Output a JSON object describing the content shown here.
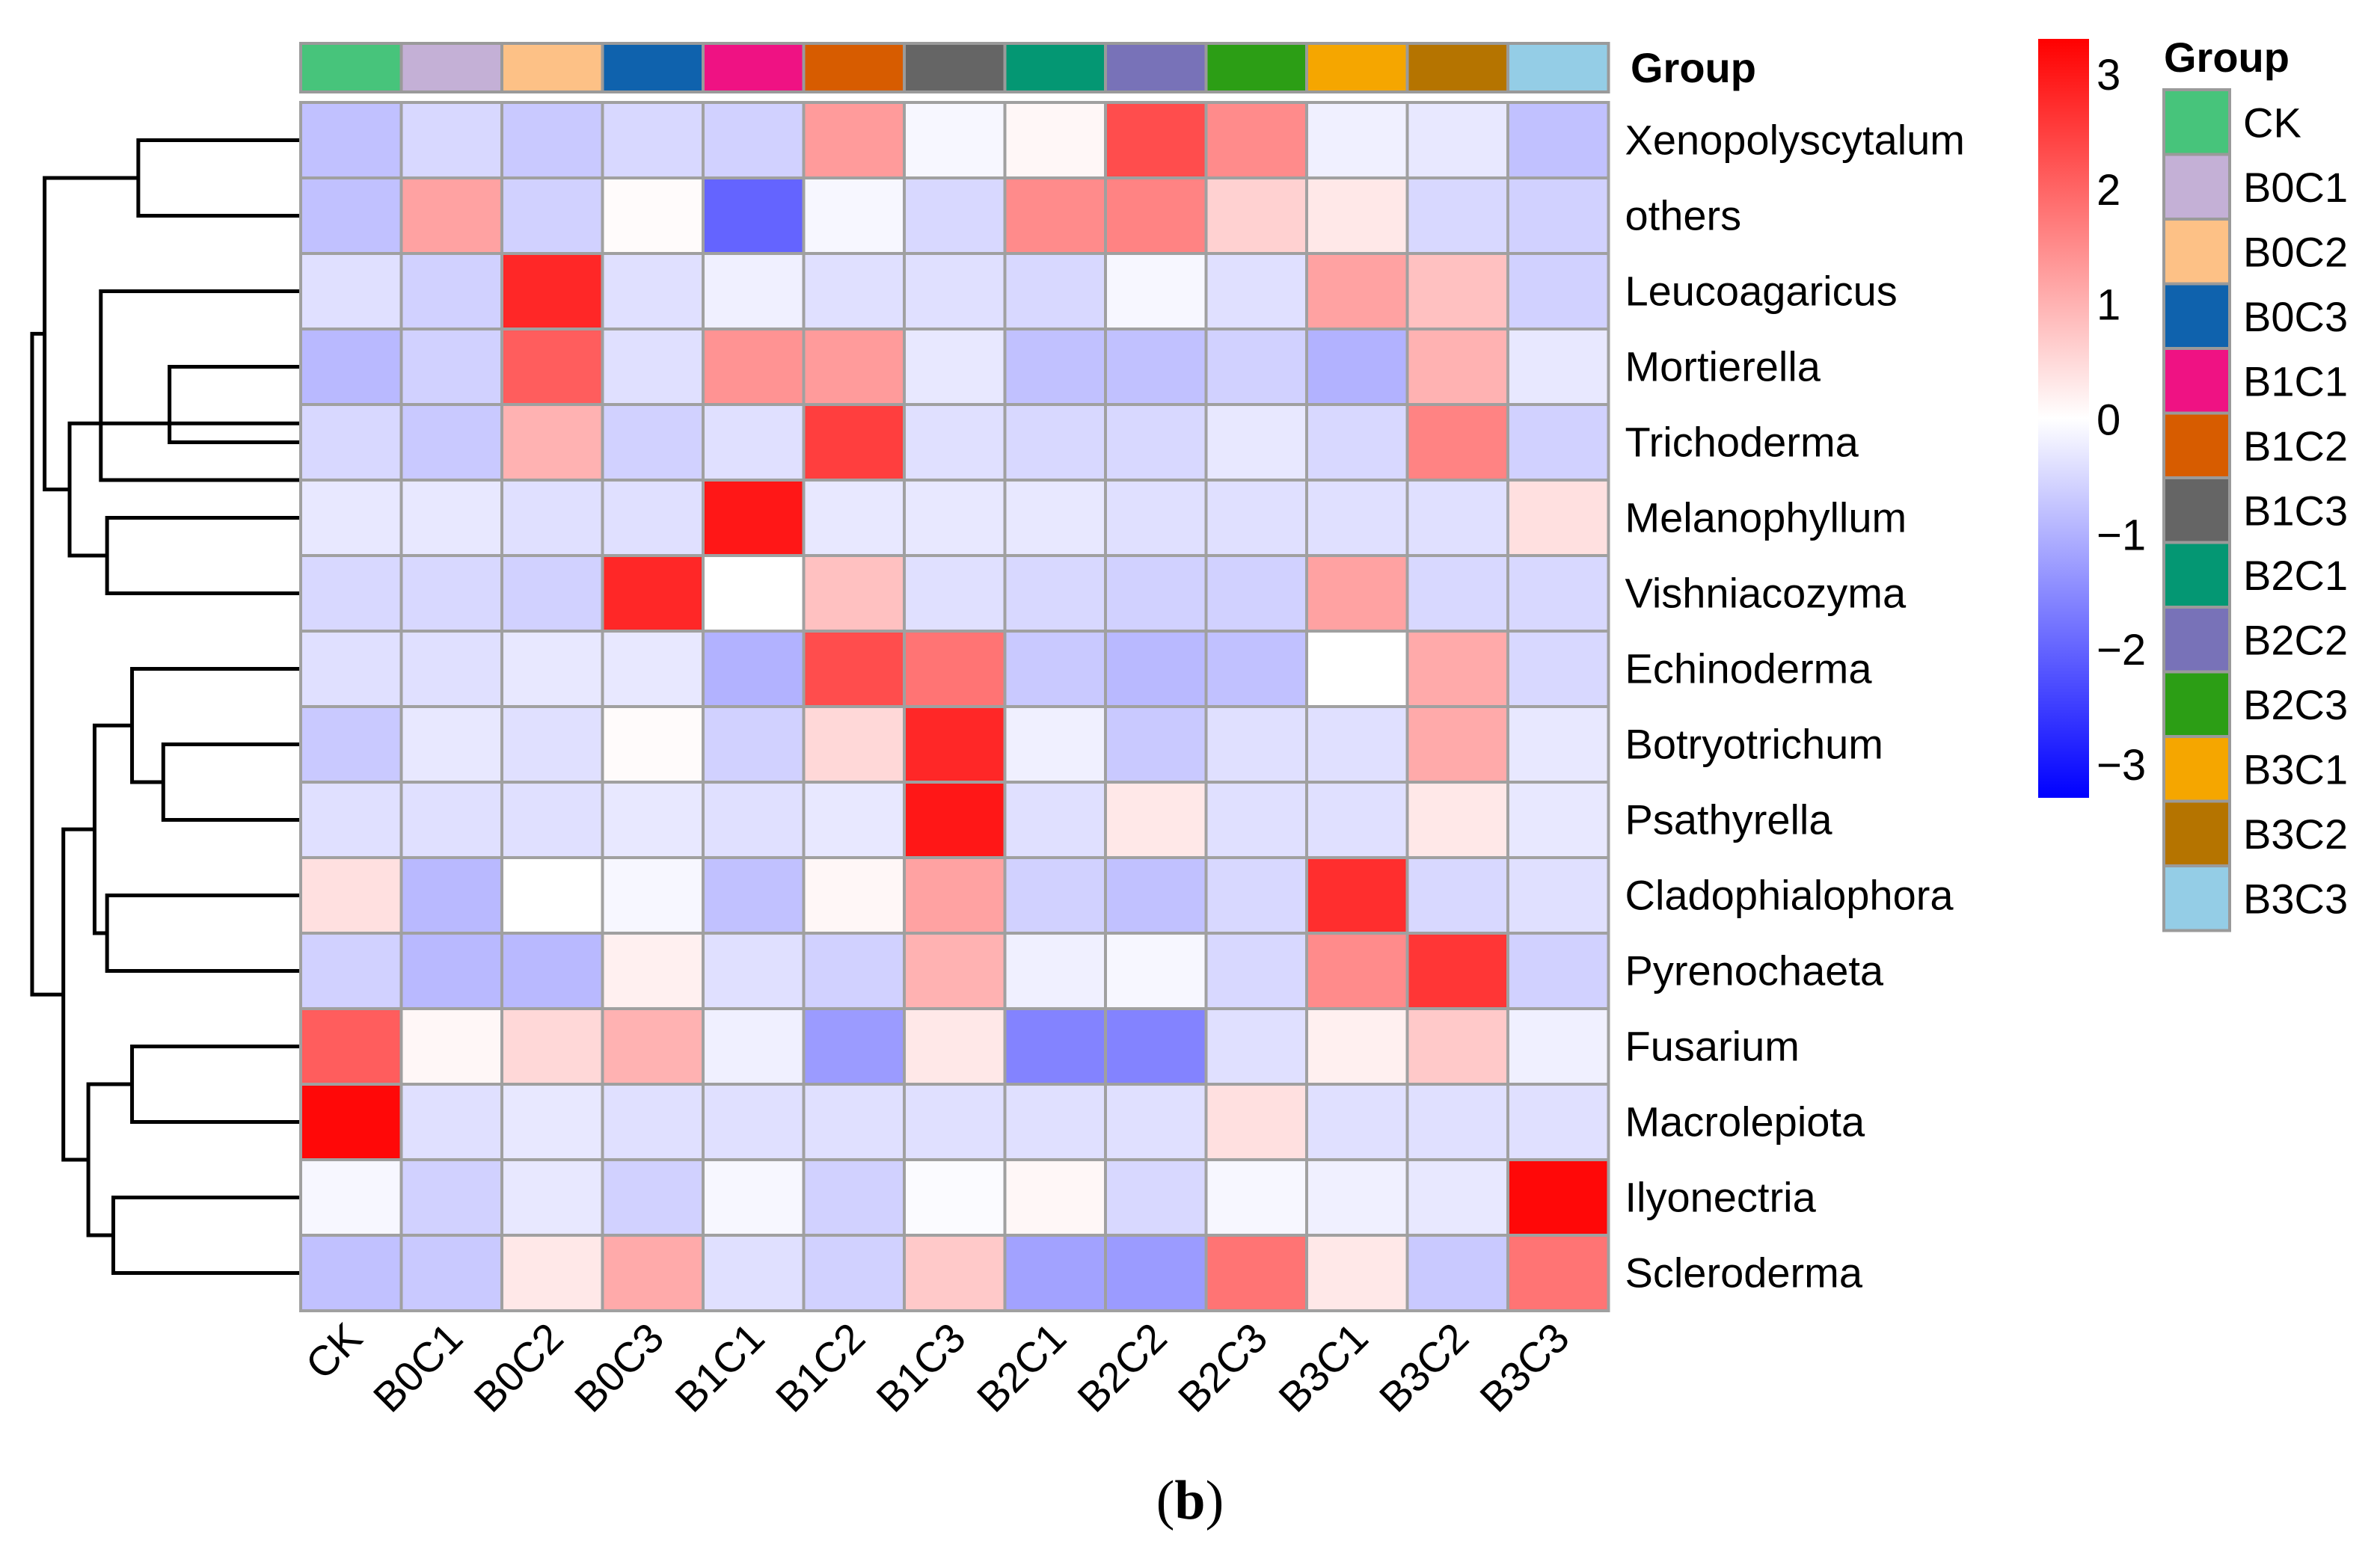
{
  "chart_data": {
    "type": "heatmap",
    "title": "",
    "columns": [
      "CK",
      "B0C1",
      "B0C2",
      "B0C3",
      "B1C1",
      "B1C2",
      "B1C3",
      "B2C1",
      "B2C2",
      "B2C3",
      "B3C1",
      "B3C2",
      "B3C3"
    ],
    "rows": [
      "Xenopolyscytalum",
      "others",
      "Leucoagaricus",
      "Mortierella",
      "Trichoderma",
      "Melanophyllum",
      "Vishniacozyma",
      "Echinoderma",
      "Botryotrichum",
      "Psathyrella",
      "Cladophialophora",
      "Pyrenochaeta",
      "Fusarium",
      "Macrolepiota",
      "Ilyonectria",
      "Scleroderma"
    ],
    "values": [
      [
        -0.8,
        -0.5,
        -0.7,
        -0.5,
        -0.6,
        1.3,
        -0.1,
        0.1,
        2.3,
        1.5,
        -0.2,
        -0.3,
        -0.8
      ],
      [
        -0.8,
        1.2,
        -0.6,
        0.05,
        -2.0,
        -0.1,
        -0.5,
        1.5,
        1.6,
        0.6,
        0.3,
        -0.5,
        -0.6
      ],
      [
        -0.4,
        -0.6,
        2.8,
        -0.4,
        -0.2,
        -0.4,
        -0.4,
        -0.5,
        -0.1,
        -0.4,
        1.2,
        0.8,
        -0.6
      ],
      [
        -0.9,
        -0.6,
        2.1,
        -0.4,
        1.4,
        1.3,
        -0.3,
        -0.8,
        -0.8,
        -0.6,
        -1.0,
        1.0,
        -0.3
      ],
      [
        -0.5,
        -0.7,
        1.0,
        -0.6,
        -0.4,
        2.5,
        -0.4,
        -0.5,
        -0.5,
        -0.3,
        -0.5,
        1.6,
        -0.6
      ],
      [
        -0.3,
        -0.3,
        -0.4,
        -0.4,
        3.0,
        -0.3,
        -0.3,
        -0.3,
        -0.4,
        -0.4,
        -0.4,
        -0.4,
        0.4
      ],
      [
        -0.5,
        -0.5,
        -0.6,
        2.8,
        0.0,
        0.8,
        -0.4,
        -0.5,
        -0.6,
        -0.6,
        1.2,
        -0.5,
        -0.5
      ],
      [
        -0.4,
        -0.4,
        -0.3,
        -0.3,
        -1.0,
        2.3,
        1.8,
        -0.7,
        -0.9,
        -0.8,
        0.0,
        1.1,
        -0.5
      ],
      [
        -0.7,
        -0.3,
        -0.4,
        0.05,
        -0.6,
        0.5,
        2.8,
        -0.2,
        -0.7,
        -0.4,
        -0.4,
        1.1,
        -0.3
      ],
      [
        -0.4,
        -0.4,
        -0.4,
        -0.3,
        -0.4,
        -0.3,
        3.0,
        -0.4,
        0.3,
        -0.4,
        -0.4,
        0.3,
        -0.3
      ],
      [
        0.4,
        -0.9,
        0.0,
        -0.1,
        -0.8,
        0.1,
        1.2,
        -0.6,
        -0.8,
        -0.5,
        2.7,
        -0.5,
        -0.4
      ],
      [
        -0.6,
        -0.9,
        -0.9,
        0.2,
        -0.4,
        -0.6,
        1.0,
        -0.2,
        -0.1,
        -0.5,
        1.5,
        2.6,
        -0.6
      ],
      [
        2.1,
        0.1,
        0.5,
        1.0,
        -0.2,
        -1.3,
        0.3,
        -1.6,
        -1.6,
        -0.4,
        0.2,
        0.7,
        -0.2
      ],
      [
        3.2,
        -0.4,
        -0.3,
        -0.4,
        -0.4,
        -0.4,
        -0.4,
        -0.4,
        -0.4,
        0.4,
        -0.4,
        -0.4,
        -0.4
      ],
      [
        -0.1,
        -0.6,
        -0.3,
        -0.6,
        -0.1,
        -0.6,
        -0.05,
        0.1,
        -0.5,
        -0.1,
        -0.2,
        -0.3,
        3.2
      ],
      [
        -0.8,
        -0.7,
        0.3,
        1.1,
        -0.4,
        -0.6,
        0.7,
        -1.2,
        -1.3,
        1.8,
        0.3,
        -0.7,
        1.8
      ]
    ],
    "color_scale": {
      "min": -3.3,
      "max": 3.3,
      "low": "#0000ff",
      "mid": "#ffffff",
      "high": "#ff0000"
    },
    "colorbar_ticks": [
      "3",
      "2",
      "1",
      "0",
      "−1",
      "−2",
      "−3"
    ],
    "colorbar_tick_values": [
      3,
      2,
      1,
      0,
      -1,
      -2,
      -3
    ],
    "annotation": {
      "label": "Group",
      "legend_title": "Group",
      "colors": {
        "CK": "#47c47b",
        "B0C1": "#c4b0d6",
        "B0C2": "#fdc186",
        "B0C3": "#0f62ad",
        "B1C1": "#ef1283",
        "B1C2": "#d75c00",
        "B1C3": "#656565",
        "B2C1": "#049773",
        "B2C2": "#7872b8",
        "B2C3": "#2c9e15",
        "B3C1": "#f5a600",
        "B3C2": "#b57400",
        "B3C3": "#94cde6"
      }
    },
    "row_dendrogram": {
      "note": "leaf order top-to-bottom equals rows order; merge heights in arbitrary distance units",
      "merges": [
        [
          0,
          1,
          1.3
        ],
        [
          4,
          3,
          1.05
        ],
        [
          2,
          4.5,
          1.6
        ],
        [
          5,
          6,
          1.55
        ],
        [
          3.75,
          5.5,
          1.85
        ],
        [
          0.5,
          4.625,
          2.05
        ],
        [
          8,
          9,
          1.1
        ],
        [
          7,
          8.5,
          1.35
        ],
        [
          10,
          11,
          1.55
        ],
        [
          7.75,
          10.5,
          1.65
        ],
        [
          12,
          13,
          1.35
        ],
        [
          14,
          15,
          1.5
        ],
        [
          12.5,
          14.5,
          1.7
        ],
        [
          9.125,
          13.5,
          1.9
        ],
        [
          2.5625,
          11.3125,
          2.15
        ]
      ]
    }
  },
  "panel_label": "b",
  "panel_label_open": "(",
  "panel_label_close": ")"
}
